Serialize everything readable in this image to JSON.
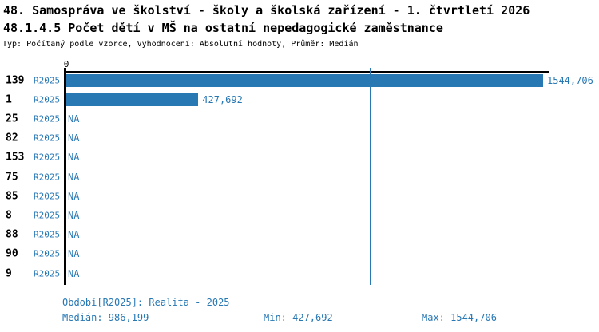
{
  "title": "48. Samospráva ve školství - školy a školská zařízení - 1. čtvrtletí 2026",
  "subtitle": "48.1.4.5 Počet dětí v MŠ na ostatní nepedagogické zaměstnance",
  "meta": "Typ: Počítaný podle vzorce, Vyhodnocení: Absolutní hodnoty, Průměr: Medián",
  "colors": {
    "accent": "#2878b4",
    "axis": "#000000",
    "background": "#ffffff"
  },
  "chart_data": {
    "type": "bar",
    "orientation": "horizontal",
    "title": "48.1.4.5 Počet dětí v MŠ na ostatní nepedagogické zaměstnance",
    "axis_origin_label": "0",
    "series_label": "R2025",
    "categories": [
      "139",
      "1",
      "25",
      "82",
      "153",
      "75",
      "85",
      "8",
      "88",
      "90",
      "9"
    ],
    "values": [
      1544.706,
      427.692,
      null,
      null,
      null,
      null,
      null,
      null,
      null,
      null,
      null
    ],
    "value_labels": [
      "1544,706",
      "427,692",
      "NA",
      "NA",
      "NA",
      "NA",
      "NA",
      "NA",
      "NA",
      "NA",
      "NA"
    ],
    "xlim": [
      0,
      1570
    ],
    "grid": false,
    "legend": false,
    "median_value": 986.199,
    "median_line_shown": true
  },
  "footer": {
    "period": "Období[R2025]: Realita - 2025",
    "median": "Medián: 986,199",
    "min": "Min: 427,692",
    "max": "Max: 1544,706"
  }
}
